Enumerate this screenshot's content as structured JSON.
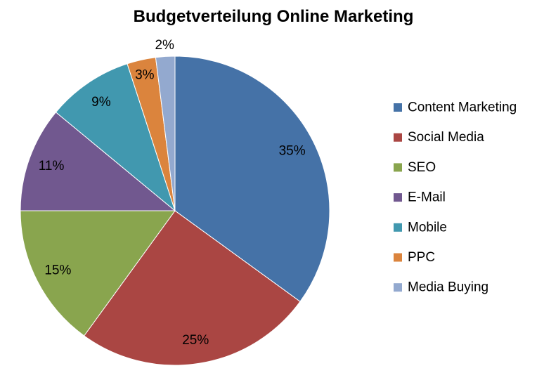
{
  "chart_data": {
    "type": "pie",
    "title": "Budgetverteilung Online Marketing",
    "categories": [
      "Content Marketing",
      "Social Media",
      "SEO",
      "E-Mail",
      "Mobile",
      "PPC",
      "Media Buying"
    ],
    "values": [
      35,
      25,
      15,
      11,
      9,
      3,
      2
    ],
    "unit": "%",
    "data_labels": [
      "35%",
      "25%",
      "15%",
      "11%",
      "9%",
      "3%",
      "2%"
    ],
    "colors": [
      "#4572A7",
      "#AA4643",
      "#89A54E",
      "#71588F",
      "#4198AF",
      "#DB843D",
      "#93A9CF"
    ],
    "legend_position": "right"
  }
}
